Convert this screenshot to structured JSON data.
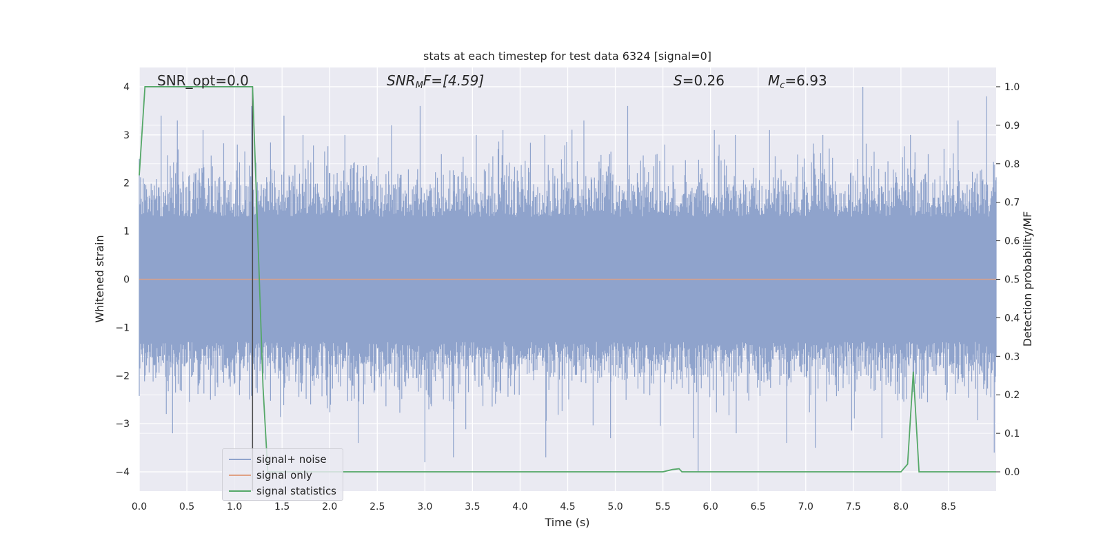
{
  "chart_data": {
    "type": "line",
    "title": "stats at each timestep for test data 6324 [signal=0]",
    "xlabel": "Time (s)",
    "ylabel": "Whitened strain",
    "ylabel_right": "Detection probability/MF",
    "xlim": [
      0.0,
      9.0
    ],
    "ylim": [
      -4.4,
      4.4
    ],
    "ylim_right": [
      -0.05,
      1.05
    ],
    "xticks": [
      "0.0",
      "0.5",
      "1.0",
      "1.5",
      "2.0",
      "2.5",
      "3.0",
      "3.5",
      "4.0",
      "4.5",
      "5.0",
      "5.5",
      "6.0",
      "6.5",
      "7.0",
      "7.5",
      "8.0",
      "8.5"
    ],
    "yticks": [
      "4",
      "3",
      "2",
      "1",
      "0",
      "−1",
      "−2",
      "−3",
      "−4"
    ],
    "yticks_right": [
      "1.0",
      "0.9",
      "0.8",
      "0.7",
      "0.6",
      "0.5",
      "0.4",
      "0.3",
      "0.2",
      "0.1",
      "0.0"
    ],
    "grid": true,
    "legend_position": "lower-left",
    "annotations": {
      "snr_opt": "SNR_opt=0.0",
      "snr_mf_main": "SNR",
      "snr_mf_sub": "M",
      "snr_mf_rest": "F=[4.59]",
      "s_sym": "S",
      "s_val": "=0.26",
      "mc_sym": "M",
      "mc_sub": "c",
      "mc_val": "=6.93"
    },
    "marker_line_x": 1.19,
    "series": [
      {
        "name": "signal+ noise",
        "color": "#8fa3cc",
        "axis": "left",
        "description_values": {
          "x_range": [
            0.0,
            9.0
          ],
          "spikes": [
            [
              0.0,
              2.5
            ],
            [
              0.23,
              3.4
            ],
            [
              0.4,
              3.3
            ],
            [
              0.67,
              3.1
            ],
            [
              1.03,
              2.8
            ],
            [
              1.18,
              3.6
            ],
            [
              1.52,
              3.4
            ],
            [
              1.72,
              3.0
            ],
            [
              2.16,
              3.0
            ],
            [
              2.65,
              3.2
            ],
            [
              2.95,
              3.6
            ],
            [
              3.54,
              3.0
            ],
            [
              3.82,
              3.1
            ],
            [
              4.26,
              3.0
            ],
            [
              4.67,
              3.3
            ],
            [
              5.13,
              3.6
            ],
            [
              5.52,
              2.8
            ],
            [
              6.04,
              3.1
            ],
            [
              6.26,
              3.0
            ],
            [
              6.62,
              3.1
            ],
            [
              7.18,
              3.0
            ],
            [
              7.6,
              4.0
            ],
            [
              8.1,
              3.0
            ],
            [
              8.6,
              3.3
            ],
            [
              8.9,
              3.8
            ],
            [
              0.35,
              -3.2
            ],
            [
              1.8,
              -2.6
            ],
            [
              2.3,
              -3.4
            ],
            [
              3.0,
              -3.8
            ],
            [
              3.3,
              -3.7
            ],
            [
              4.27,
              -3.7
            ],
            [
              4.95,
              -3.3
            ],
            [
              5.82,
              -3.3
            ],
            [
              5.87,
              -4.0
            ],
            [
              6.27,
              -3.2
            ],
            [
              6.8,
              -3.4
            ],
            [
              7.1,
              -3.5
            ],
            [
              7.8,
              -3.3
            ],
            [
              8.98,
              -3.6
            ]
          ]
        }
      },
      {
        "name": "signal only",
        "color": "#e0a184",
        "axis": "left",
        "x": [
          0.0,
          9.0
        ],
        "y": [
          0.0,
          0.0
        ]
      },
      {
        "name": "signal statistics",
        "color": "#55a868",
        "axis": "right",
        "x": [
          0.0,
          0.06,
          0.1,
          0.2,
          0.5,
          1.0,
          1.19,
          1.24,
          1.3,
          1.35,
          1.4,
          2.0,
          3.0,
          4.0,
          5.0,
          5.5,
          5.6,
          5.67,
          5.7,
          6.0,
          7.0,
          8.0,
          8.07,
          8.13,
          8.19,
          8.25,
          8.5,
          9.0
        ],
        "y": [
          0.77,
          1.0,
          1.0,
          1.0,
          1.0,
          1.0,
          1.0,
          0.65,
          0.22,
          0.0,
          0.0,
          0.0,
          0.0,
          0.0,
          0.0,
          0.0,
          0.006,
          0.008,
          0.0,
          0.0,
          0.0,
          0.0,
          0.02,
          0.26,
          0.0,
          0.0,
          0.0,
          0.0
        ]
      }
    ]
  }
}
